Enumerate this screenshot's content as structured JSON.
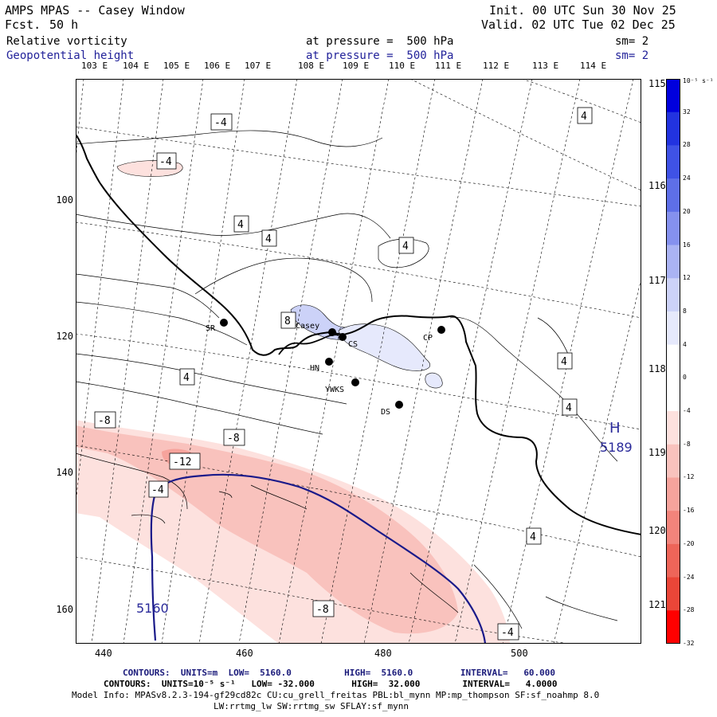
{
  "header": {
    "model_title": "AMPS MPAS -- Casey Window",
    "forecast_label": "Fcst.",
    "forecast_hours": "50 h",
    "init_time": "Init. 00 UTC Sun 30 Nov 25",
    "valid_time": "Valid. 02 UTC Tue 02 Dec 25",
    "field1": {
      "name": "Relative vorticity",
      "level": "at pressure =  500 hPa",
      "smoothing": "sm= 2"
    },
    "field2": {
      "name": "Geopotential height",
      "level": "at pressure =  500 hPa",
      "smoothing": "sm= 2"
    }
  },
  "axes": {
    "top_lon_labels": [
      "103 E",
      "104 E",
      "105 E",
      "106 E",
      "107 E",
      "108 E",
      "109 E",
      "110 E",
      "111 E",
      "112 E",
      "113 E",
      "114 E"
    ],
    "right_lon_labels": [
      "115 E",
      "116 E",
      "117 E",
      "118 E",
      "119 E",
      "120 E",
      "121 E"
    ],
    "x_ticks": [
      "440",
      "460",
      "480",
      "500"
    ],
    "y_ticks": [
      "100",
      "120",
      "140",
      "160"
    ]
  },
  "stations": [
    {
      "id": "SR",
      "label": "SR"
    },
    {
      "id": "Casey",
      "label": "Casey"
    },
    {
      "id": "CS",
      "label": "CS"
    },
    {
      "id": "CP",
      "label": "CP"
    },
    {
      "id": "HN",
      "label": "HN"
    },
    {
      "id": "YWKS",
      "label": "YWKS"
    },
    {
      "id": "DS",
      "label": "DS"
    }
  ],
  "contour_labels": {
    "vorticity": [
      "-4",
      "-4",
      "4",
      "4",
      "4",
      "4",
      "8",
      "4",
      "4",
      "4",
      "-8",
      "-8",
      "-12",
      "-4",
      "4",
      "-8",
      "-4"
    ],
    "height": [
      "5160",
      "H",
      "5189"
    ]
  },
  "colorbar": {
    "unit": "10⁻⁵ s⁻¹",
    "labels": [
      "32",
      "28",
      "24",
      "20",
      "16",
      "12",
      "8",
      "4",
      "0",
      "-4",
      "-8",
      "-12",
      "-16",
      "-20",
      "-24",
      "-28",
      "-32"
    ],
    "colors": [
      "#0000dd",
      "#2233e0",
      "#3f52e6",
      "#5e6fe8",
      "#8591ee",
      "#aab3f3",
      "#ccd2f8",
      "#e6e9fc",
      "#ffffff",
      "#ffffff",
      "#fde1de",
      "#f9c2bd",
      "#f6a39c",
      "#f2847b",
      "#ee6559",
      "#ea4638",
      "#ff0000"
    ]
  },
  "footer": {
    "line1": "CONTOURS:  UNITS=m  LOW=  5160.0          HIGH=  5160.0         INTERVAL=   60.000",
    "line2": "CONTOURS:  UNITS=10⁻⁵ s⁻¹   LOW= -32.000       HIGH=  32.000        INTERVAL=   4.0000",
    "line3": "Model Info: MPASv8.2.3-194-gf29cd82c CU:cu_grell_freitas PBL:bl_mynn MP:mp_thompson SF:sf_noahmp 8.0",
    "line4": "LW:rrtmg_lw SW:rrtmg_sw SFLAY:sf_mynn"
  }
}
